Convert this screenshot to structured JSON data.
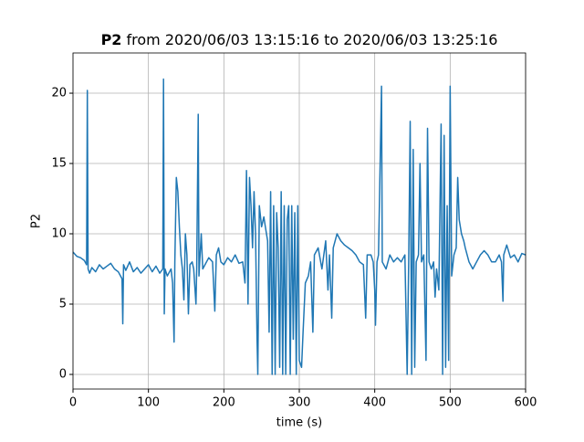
{
  "chart_data": {
    "type": "line",
    "title_name": "P2",
    "title_range": "from 2020/06/03 13:15:16 to 2020/06/03 13:25:16",
    "x_label": "time (s)",
    "y_label": "P2",
    "color": "#1f77b4",
    "grid": true,
    "xlim": [
      0,
      600
    ],
    "xticks": [
      0,
      100,
      200,
      300,
      400,
      500,
      600
    ],
    "ylim": [
      -1.04,
      22.86
    ],
    "yticks": [
      0,
      5,
      10,
      15,
      20
    ],
    "x": [
      0,
      5,
      10,
      15,
      18,
      19,
      20,
      22,
      25,
      30,
      35,
      40,
      45,
      50,
      55,
      60,
      65,
      66,
      67,
      70,
      75,
      80,
      85,
      90,
      95,
      100,
      105,
      110,
      115,
      119,
      120,
      121,
      122,
      125,
      128,
      130,
      132,
      134,
      135,
      137,
      139,
      141,
      143,
      145,
      147,
      149,
      151,
      153,
      155,
      158,
      160,
      163,
      164,
      166,
      167,
      170,
      172,
      175,
      180,
      185,
      188,
      190,
      193,
      196,
      200,
      205,
      210,
      215,
      220,
      225,
      228,
      230,
      232,
      234,
      236,
      238,
      240,
      242,
      244,
      245,
      247,
      250,
      253,
      255,
      258,
      260,
      262,
      264,
      266,
      268,
      270,
      272,
      274,
      276,
      278,
      280,
      282,
      284,
      286,
      288,
      290,
      292,
      294,
      296,
      298,
      300,
      303,
      305,
      308,
      312,
      315,
      318,
      320,
      325,
      330,
      335,
      338,
      340,
      343,
      345,
      350,
      355,
      360,
      365,
      370,
      375,
      380,
      385,
      388,
      390,
      395,
      398,
      400,
      401,
      403,
      405,
      409,
      410,
      415,
      420,
      425,
      430,
      435,
      440,
      443,
      445,
      447,
      449,
      451,
      453,
      455,
      458,
      460,
      462,
      465,
      468,
      470,
      472,
      475,
      478,
      480,
      482,
      485,
      488,
      490,
      492,
      494,
      496,
      498,
      500,
      502,
      505,
      508,
      510,
      512,
      515,
      518,
      520,
      525,
      530,
      535,
      540,
      545,
      550,
      555,
      560,
      565,
      568,
      570,
      571,
      575,
      580,
      585,
      590,
      595,
      600
    ],
    "values": [
      8.7,
      8.4,
      8.3,
      8.1,
      7.8,
      20.2,
      7.5,
      7.2,
      7.6,
      7.3,
      7.8,
      7.5,
      7.7,
      7.9,
      7.5,
      7.3,
      6.8,
      3.6,
      7.8,
      7.4,
      8.0,
      7.3,
      7.6,
      7.2,
      7.5,
      7.8,
      7.3,
      7.7,
      7.2,
      7.5,
      21.0,
      4.3,
      7.5,
      7.0,
      7.3,
      7.5,
      6.5,
      2.3,
      8.0,
      14.0,
      13.0,
      10.5,
      8.5,
      7.5,
      5.3,
      10.0,
      8.5,
      4.3,
      7.8,
      8.0,
      7.5,
      5.0,
      7.5,
      18.5,
      7.0,
      10.0,
      7.5,
      7.8,
      8.3,
      8.0,
      4.5,
      8.5,
      9.0,
      8.0,
      7.8,
      8.3,
      8.0,
      8.5,
      7.9,
      8.0,
      6.5,
      14.5,
      5.0,
      14.0,
      12.0,
      9.0,
      13.0,
      10.0,
      2.5,
      0,
      12.0,
      10.5,
      11.2,
      10.5,
      9.5,
      3.0,
      13.0,
      0,
      12.0,
      0,
      11.5,
      9.0,
      0.5,
      13.0,
      0,
      12.0,
      0,
      11.0,
      12.0,
      0,
      12.0,
      2.5,
      11.5,
      0,
      12.0,
      1.0,
      0.5,
      3.0,
      6.5,
      7.0,
      8.0,
      3.0,
      8.5,
      9.0,
      7.5,
      9.5,
      6.0,
      8.5,
      4.0,
      9.0,
      10.0,
      9.5,
      9.2,
      9.0,
      8.8,
      8.5,
      8.0,
      7.8,
      4.0,
      8.5,
      8.5,
      8.0,
      6.0,
      3.5,
      8.0,
      8.5,
      20.5,
      8.0,
      7.5,
      8.5,
      8.0,
      8.3,
      8.0,
      8.5,
      0,
      8.0,
      18.0,
      0,
      16.0,
      0.5,
      8.0,
      8.5,
      15.0,
      8.0,
      8.5,
      1.0,
      17.5,
      8.0,
      7.5,
      8.0,
      5.5,
      7.5,
      6.0,
      17.8,
      0,
      17.0,
      0.5,
      12.0,
      1.0,
      20.5,
      7.0,
      8.5,
      9.0,
      14.0,
      11.0,
      10.0,
      9.5,
      9.0,
      8.0,
      7.5,
      8.0,
      8.5,
      8.8,
      8.5,
      8.0,
      8.0,
      8.5,
      8.0,
      5.2,
      8.5,
      9.2,
      8.3,
      8.5,
      8.0,
      8.6,
      8.5
    ]
  }
}
